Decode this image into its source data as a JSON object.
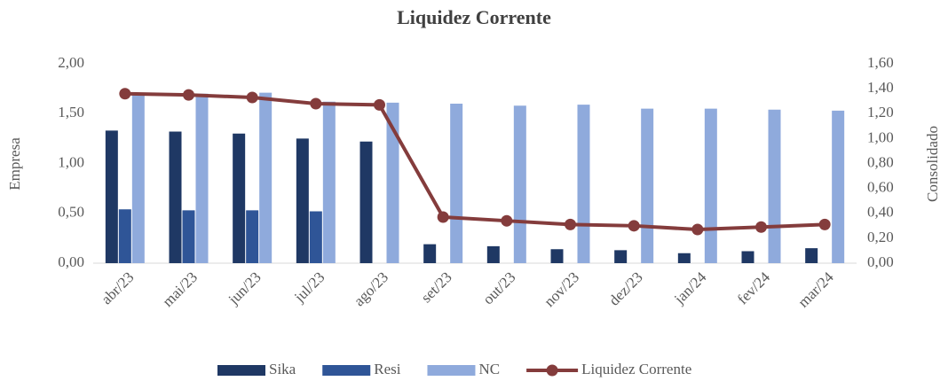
{
  "chart_data": {
    "type": "bar",
    "title": "Liquidez Corrente",
    "ylabel": "Empresa",
    "y2label": "Consolidado",
    "categories": [
      "abr/23",
      "mai/23",
      "jun/23",
      "jul/23",
      "ago/23",
      "set/23",
      "out/23",
      "nov/23",
      "dez/23",
      "jan/24",
      "fev/24",
      "mar/24"
    ],
    "series": [
      {
        "name": "Sika",
        "color": "#1f3864",
        "type": "bar",
        "values": [
          1.33,
          1.32,
          1.3,
          1.25,
          1.22,
          0.19,
          0.17,
          0.14,
          0.13,
          0.1,
          0.12,
          0.15
        ]
      },
      {
        "name": "Resi",
        "color": "#2f5597",
        "type": "bar",
        "values": [
          0.54,
          0.53,
          0.53,
          0.52,
          null,
          null,
          null,
          null,
          null,
          null,
          null,
          null
        ]
      },
      {
        "name": "NC",
        "color": "#8faadc",
        "type": "bar",
        "values": [
          1.71,
          1.7,
          1.71,
          1.62,
          1.61,
          1.6,
          1.58,
          1.59,
          1.55,
          1.55,
          1.54,
          1.53
        ]
      },
      {
        "name": "Liquidez Corrente",
        "color": "#843c3c",
        "type": "line",
        "axis": "y2",
        "values": [
          1.36,
          1.35,
          1.33,
          1.28,
          1.27,
          0.37,
          0.34,
          0.31,
          0.3,
          0.27,
          0.29,
          0.31
        ]
      }
    ],
    "ylim": [
      0,
      2
    ],
    "yticks": [
      {
        "value": 0,
        "label": "0,00"
      },
      {
        "value": 0.5,
        "label": "0,50"
      },
      {
        "value": 1,
        "label": "1,00"
      },
      {
        "value": 1.5,
        "label": "1,50"
      },
      {
        "value": 2,
        "label": "2,00"
      }
    ],
    "y2lim": [
      0,
      1.6
    ],
    "y2ticks": [
      {
        "value": 0,
        "label": "0,00"
      },
      {
        "value": 0.2,
        "label": "0,20"
      },
      {
        "value": 0.4,
        "label": "0,40"
      },
      {
        "value": 0.6,
        "label": "0,60"
      },
      {
        "value": 0.8,
        "label": "0,80"
      },
      {
        "value": 1,
        "label": "1,00"
      },
      {
        "value": 1.2,
        "label": "1,20"
      },
      {
        "value": 1.4,
        "label": "1,40"
      },
      {
        "value": 1.6,
        "label": "1,60"
      }
    ],
    "grid": false,
    "legend": "bottom"
  }
}
